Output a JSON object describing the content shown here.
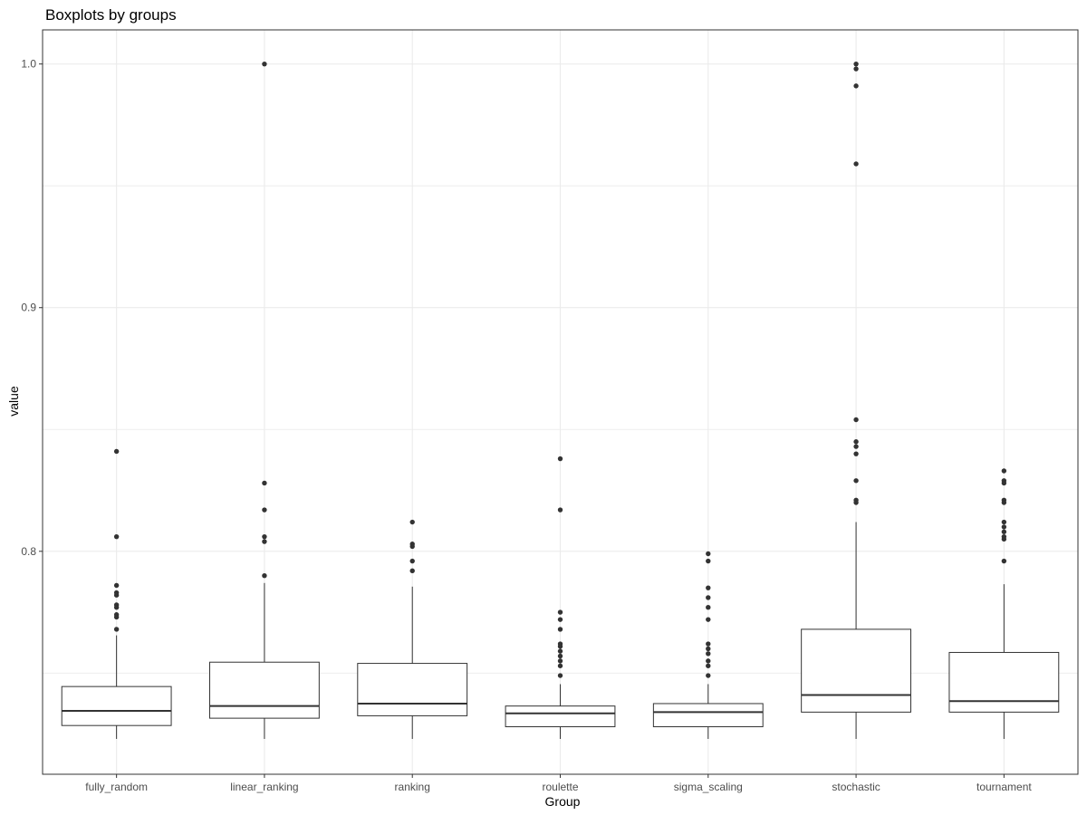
{
  "chart_data": {
    "type": "boxplot",
    "title": "Boxplots by groups",
    "xlabel": "Group",
    "ylabel": "value",
    "ylim": [
      0.7085,
      1.014
    ],
    "yticks": [
      0.8,
      0.9,
      1.0
    ],
    "ytick_labels": [
      "0.8",
      "0.9",
      "1.0"
    ],
    "grid": true,
    "categories": [
      "fully_random",
      "linear_ranking",
      "ranking",
      "roulette",
      "sigma_scaling",
      "stochastic",
      "tournament"
    ],
    "groups": [
      {
        "name": "fully_random",
        "whisker_low": 0.723,
        "q1": 0.7285,
        "median": 0.7345,
        "q3": 0.7445,
        "whisker_high": 0.7655,
        "outliers": [
          0.841,
          0.806,
          0.786,
          0.783,
          0.782,
          0.778,
          0.777,
          0.774,
          0.773,
          0.768
        ]
      },
      {
        "name": "linear_ranking",
        "whisker_low": 0.723,
        "q1": 0.7315,
        "median": 0.7365,
        "q3": 0.7545,
        "whisker_high": 0.787,
        "outliers": [
          1.0,
          0.828,
          0.817,
          0.806,
          0.804,
          0.79
        ]
      },
      {
        "name": "ranking",
        "whisker_low": 0.723,
        "q1": 0.7325,
        "median": 0.7375,
        "q3": 0.754,
        "whisker_high": 0.7855,
        "outliers": [
          0.812,
          0.803,
          0.802,
          0.796,
          0.792
        ]
      },
      {
        "name": "roulette",
        "whisker_low": 0.723,
        "q1": 0.728,
        "median": 0.7335,
        "q3": 0.7365,
        "whisker_high": 0.7455,
        "outliers": [
          0.838,
          0.817,
          0.775,
          0.772,
          0.768,
          0.762,
          0.761,
          0.759,
          0.757,
          0.755,
          0.753,
          0.749
        ]
      },
      {
        "name": "sigma_scaling",
        "whisker_low": 0.723,
        "q1": 0.728,
        "median": 0.734,
        "q3": 0.7375,
        "whisker_high": 0.7455,
        "outliers": [
          0.799,
          0.796,
          0.785,
          0.781,
          0.777,
          0.772,
          0.762,
          0.76,
          0.758,
          0.755,
          0.753,
          0.749
        ]
      },
      {
        "name": "stochastic",
        "whisker_low": 0.723,
        "q1": 0.734,
        "median": 0.741,
        "q3": 0.768,
        "whisker_high": 0.812,
        "outliers": [
          1.0,
          0.998,
          0.991,
          0.959,
          0.854,
          0.845,
          0.843,
          0.84,
          0.829,
          0.821,
          0.82
        ]
      },
      {
        "name": "tournament",
        "whisker_low": 0.723,
        "q1": 0.734,
        "median": 0.7385,
        "q3": 0.7585,
        "whisker_high": 0.7865,
        "outliers": [
          0.833,
          0.829,
          0.828,
          0.821,
          0.82,
          0.812,
          0.81,
          0.808,
          0.806,
          0.805,
          0.796
        ]
      }
    ]
  },
  "colors": {
    "panel_border": "#333333",
    "grid": "#ebebeb",
    "box_stroke": "#333333",
    "box_fill": "#ffffff",
    "outlier": "#333333",
    "tick": "#333333"
  }
}
